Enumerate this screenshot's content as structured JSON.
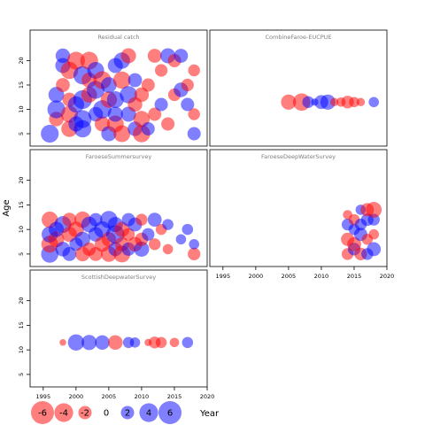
{
  "chart_data": {
    "type": "scatter",
    "title": "",
    "ylabel": "Age",
    "xlabel": "Year",
    "xlim": [
      1993,
      2020
    ],
    "ylim": [
      3,
      23
    ],
    "x_ticks": [
      1995,
      2000,
      2005,
      2010,
      2015,
      2020
    ],
    "y_ticks": [
      5,
      10,
      15,
      20
    ],
    "colors": {
      "negative": "#ff0000",
      "positive": "#0000ff",
      "opacity": 0.5
    },
    "legend": {
      "placement": "bottom-left",
      "values": [
        -6,
        -4,
        -2,
        0,
        2,
        4,
        6
      ]
    },
    "panels": [
      {
        "title": "Residual catch",
        "rows": [
          {
            "year": 1996,
            "age": 5,
            "value": 3.6
          },
          {
            "year": 1997,
            "age": 8,
            "value": -2.4
          },
          {
            "year": 1997,
            "age": 10,
            "value": 3.6
          },
          {
            "year": 1997,
            "age": 13,
            "value": 2.8
          },
          {
            "year": 1998,
            "age": 15,
            "value": -2.2
          },
          {
            "year": 1998,
            "age": 19,
            "value": 2.6
          },
          {
            "year": 1998,
            "age": 21,
            "value": 2.4
          },
          {
            "year": 1999,
            "age": 6,
            "value": -3.0
          },
          {
            "year": 1999,
            "age": 9,
            "value": -3.2
          },
          {
            "year": 1999,
            "age": 12,
            "value": -2.2
          },
          {
            "year": 1999,
            "age": 18,
            "value": -3.4
          },
          {
            "year": 2000,
            "age": 7,
            "value": 2.6
          },
          {
            "year": 2000,
            "age": 11,
            "value": 3.0
          },
          {
            "year": 2000,
            "age": 20,
            "value": -3.6
          },
          {
            "year": 2001,
            "age": 6,
            "value": 3.4
          },
          {
            "year": 2001,
            "age": 8,
            "value": 3.6
          },
          {
            "year": 2001,
            "age": 12,
            "value": 4.0
          },
          {
            "year": 2001,
            "age": 17,
            "value": 3.8
          },
          {
            "year": 2002,
            "age": 13,
            "value": -2.8
          },
          {
            "year": 2002,
            "age": 16,
            "value": -2.6
          },
          {
            "year": 2002,
            "age": 20,
            "value": -3.6
          },
          {
            "year": 2003,
            "age": 9,
            "value": 2.4
          },
          {
            "year": 2003,
            "age": 14,
            "value": 3.6
          },
          {
            "year": 2003,
            "age": 18,
            "value": 3.2
          },
          {
            "year": 2004,
            "age": 7,
            "value": -2.6
          },
          {
            "year": 2004,
            "age": 10,
            "value": 3.8
          },
          {
            "year": 2004,
            "age": 16,
            "value": -3.6
          },
          {
            "year": 2005,
            "age": 5,
            "value": 2.6
          },
          {
            "year": 2005,
            "age": 12,
            "value": -3.0
          },
          {
            "year": 2005,
            "age": 15,
            "value": 2.8
          },
          {
            "year": 2006,
            "age": 7,
            "value": -3.2
          },
          {
            "year": 2006,
            "age": 9,
            "value": 2.6
          },
          {
            "year": 2006,
            "age": 12,
            "value": 3.2
          },
          {
            "year": 2006,
            "age": 19,
            "value": 2.6
          },
          {
            "year": 2007,
            "age": 5,
            "value": -3.2
          },
          {
            "year": 2007,
            "age": 16,
            "value": -3.4
          },
          {
            "year": 2007,
            "age": 20,
            "value": 3.0
          },
          {
            "year": 2008,
            "age": 9,
            "value": 2.6
          },
          {
            "year": 2008,
            "age": 13,
            "value": 3.4
          },
          {
            "year": 2008,
            "age": 21,
            "value": -2.6
          },
          {
            "year": 2009,
            "age": 6,
            "value": 2.4
          },
          {
            "year": 2009,
            "age": 11,
            "value": -2.4
          },
          {
            "year": 2009,
            "age": 16,
            "value": 2.2
          },
          {
            "year": 2010,
            "age": 5,
            "value": -3.4
          },
          {
            "year": 2010,
            "age": 8,
            "value": -3.0
          },
          {
            "year": 2010,
            "age": 13,
            "value": -2.4
          },
          {
            "year": 2011,
            "age": 6,
            "value": 2.0
          },
          {
            "year": 2011,
            "age": 15,
            "value": -2.0
          },
          {
            "year": 2012,
            "age": 9,
            "value": -2.0
          },
          {
            "year": 2012,
            "age": 21,
            "value": -2.2
          },
          {
            "year": 2013,
            "age": 11,
            "value": 2.0
          },
          {
            "year": 2013,
            "age": 18,
            "value": -1.8
          },
          {
            "year": 2014,
            "age": 7,
            "value": -2.0
          },
          {
            "year": 2014,
            "age": 21,
            "value": 2.6
          },
          {
            "year": 2015,
            "age": 13,
            "value": -1.8
          },
          {
            "year": 2015,
            "age": 20,
            "value": -2.0
          },
          {
            "year": 2016,
            "age": 14,
            "value": 2.4
          },
          {
            "year": 2016,
            "age": 21,
            "value": 2.2
          },
          {
            "year": 2017,
            "age": 11,
            "value": 2.0
          },
          {
            "year": 2017,
            "age": 15,
            "value": -1.8
          },
          {
            "year": 2018,
            "age": 5,
            "value": 2.0
          },
          {
            "year": 2018,
            "age": 9,
            "value": -1.6
          },
          {
            "year": 2018,
            "age": 18,
            "value": -1.6
          }
        ]
      },
      {
        "title": "CombineFaroe-EUCPUE",
        "rows": [
          {
            "year": 2005,
            "age": 11.5,
            "value": -2.6
          },
          {
            "year": 2007,
            "age": 11.5,
            "value": -3.4
          },
          {
            "year": 2008,
            "age": 11.5,
            "value": 1.6
          },
          {
            "year": 2009,
            "age": 11.5,
            "value": 0.6
          },
          {
            "year": 2010,
            "age": 11.5,
            "value": 2.2
          },
          {
            "year": 2011,
            "age": 11.5,
            "value": 2.6
          },
          {
            "year": 2012,
            "age": 11.5,
            "value": -0.8
          },
          {
            "year": 2013,
            "age": 11.5,
            "value": -1.0
          },
          {
            "year": 2014,
            "age": 11.5,
            "value": -1.8
          },
          {
            "year": 2015,
            "age": 11.5,
            "value": -1.2
          },
          {
            "year": 2016,
            "age": 11.5,
            "value": -0.8
          },
          {
            "year": 2018,
            "age": 11.5,
            "value": 1.2
          }
        ]
      },
      {
        "title": "FaroeseSummersurvey",
        "rows": [
          {
            "year": 1996,
            "age": 5,
            "value": 3.4
          },
          {
            "year": 1996,
            "age": 7,
            "value": -3.2
          },
          {
            "year": 1996,
            "age": 9,
            "value": 3.0
          },
          {
            "year": 1996,
            "age": 12,
            "value": -3.0
          },
          {
            "year": 1997,
            "age": 8,
            "value": -2.8
          },
          {
            "year": 1997,
            "age": 10,
            "value": 2.6
          },
          {
            "year": 1998,
            "age": 6,
            "value": 2.4
          },
          {
            "year": 1998,
            "age": 11,
            "value": 3.2
          },
          {
            "year": 1999,
            "age": 5,
            "value": 2.2
          },
          {
            "year": 1999,
            "age": 9,
            "value": -2.6
          },
          {
            "year": 1999,
            "age": 12,
            "value": -2.2
          },
          {
            "year": 2000,
            "age": 7,
            "value": 2.0
          },
          {
            "year": 2000,
            "age": 10,
            "value": -2.8
          },
          {
            "year": 2001,
            "age": 5,
            "value": -2.4
          },
          {
            "year": 2001,
            "age": 8,
            "value": 2.6
          },
          {
            "year": 2001,
            "age": 12,
            "value": -3.0
          },
          {
            "year": 2002,
            "age": 6,
            "value": -2.0
          },
          {
            "year": 2002,
            "age": 11,
            "value": 2.8
          },
          {
            "year": 2003,
            "age": 5,
            "value": -2.2
          },
          {
            "year": 2003,
            "age": 9,
            "value": 2.4
          },
          {
            "year": 2003,
            "age": 12,
            "value": 2.0
          },
          {
            "year": 2004,
            "age": 7,
            "value": -2.6
          },
          {
            "year": 2004,
            "age": 10,
            "value": 3.0
          },
          {
            "year": 2005,
            "age": 5,
            "value": -2.8
          },
          {
            "year": 2005,
            "age": 8,
            "value": -2.4
          },
          {
            "year": 2005,
            "age": 12,
            "value": 3.4
          },
          {
            "year": 2006,
            "age": 6,
            "value": 2.2
          },
          {
            "year": 2006,
            "age": 9,
            "value": 3.8
          },
          {
            "year": 2006,
            "age": 11,
            "value": 2.6
          },
          {
            "year": 2007,
            "age": 5,
            "value": -3.2
          },
          {
            "year": 2007,
            "age": 7,
            "value": -2.2
          },
          {
            "year": 2007,
            "age": 10,
            "value": -2.6
          },
          {
            "year": 2008,
            "age": 6,
            "value": 2.0
          },
          {
            "year": 2008,
            "age": 9,
            "value": -1.8
          },
          {
            "year": 2008,
            "age": 12,
            "value": 2.0
          },
          {
            "year": 2009,
            "age": 7,
            "value": -2.4
          },
          {
            "year": 2009,
            "age": 11,
            "value": 2.2
          },
          {
            "year": 2010,
            "age": 6,
            "value": 2.6
          },
          {
            "year": 2010,
            "age": 8,
            "value": -2.0
          },
          {
            "year": 2010,
            "age": 12,
            "value": -1.6
          },
          {
            "year": 2011,
            "age": 9,
            "value": 1.8
          },
          {
            "year": 2012,
            "age": 7,
            "value": -1.6
          },
          {
            "year": 2012,
            "age": 12,
            "value": 2.2
          },
          {
            "year": 2013,
            "age": 10,
            "value": -1.4
          },
          {
            "year": 2014,
            "age": 6,
            "value": -1.2
          },
          {
            "year": 2014,
            "age": 11,
            "value": 1.4
          },
          {
            "year": 2016,
            "age": 8,
            "value": 1.2
          },
          {
            "year": 2017,
            "age": 10,
            "value": 1.4
          },
          {
            "year": 2018,
            "age": 5,
            "value": -1.8
          },
          {
            "year": 2018,
            "age": 7,
            "value": 1.2
          }
        ]
      },
      {
        "title": "FaroeseDeepWaterSurvey",
        "rows": [
          {
            "year": 2014,
            "age": 5,
            "value": -1.6
          },
          {
            "year": 2014,
            "age": 8,
            "value": -2.0
          },
          {
            "year": 2014,
            "age": 11,
            "value": 1.6
          },
          {
            "year": 2014,
            "age": 13,
            "value": -1.0
          },
          {
            "year": 2015,
            "age": 6,
            "value": 1.8
          },
          {
            "year": 2015,
            "age": 7,
            "value": -2.2
          },
          {
            "year": 2015,
            "age": 10,
            "value": 1.4
          },
          {
            "year": 2015,
            "age": 12,
            "value": -1.4
          },
          {
            "year": 2016,
            "age": 5,
            "value": -1.8
          },
          {
            "year": 2016,
            "age": 9,
            "value": 2.0
          },
          {
            "year": 2016,
            "age": 11,
            "value": 1.6
          },
          {
            "year": 2016,
            "age": 14,
            "value": 1.2
          },
          {
            "year": 2017,
            "age": 5,
            "value": 1.6
          },
          {
            "year": 2017,
            "age": 8,
            "value": -1.4
          },
          {
            "year": 2017,
            "age": 12,
            "value": 1.8
          },
          {
            "year": 2017,
            "age": 14,
            "value": -2.0
          },
          {
            "year": 2018,
            "age": 6,
            "value": 2.2
          },
          {
            "year": 2018,
            "age": 9,
            "value": -1.2
          },
          {
            "year": 2018,
            "age": 12,
            "value": 1.6
          },
          {
            "year": 2018,
            "age": 14,
            "value": -2.8
          }
        ]
      },
      {
        "title": "ScottishDeepwaterSurvey",
        "rows": [
          {
            "year": 1998,
            "age": 11.5,
            "value": -0.5
          },
          {
            "year": 2000,
            "age": 11.5,
            "value": 3.0
          },
          {
            "year": 2002,
            "age": 11.5,
            "value": 2.6
          },
          {
            "year": 2004,
            "age": 11.5,
            "value": 2.4
          },
          {
            "year": 2006,
            "age": 11.5,
            "value": -2.4
          },
          {
            "year": 2008,
            "age": 11.5,
            "value": 1.4
          },
          {
            "year": 2009,
            "age": 11.5,
            "value": 1.2
          },
          {
            "year": 2011,
            "age": 11.5,
            "value": -0.6
          },
          {
            "year": 2012,
            "age": 11.5,
            "value": -1.6
          },
          {
            "year": 2013,
            "age": 11.5,
            "value": -1.4
          },
          {
            "year": 2015,
            "age": 11.5,
            "value": -1.0
          },
          {
            "year": 2017,
            "age": 11.5,
            "value": 1.4
          }
        ]
      }
    ]
  }
}
